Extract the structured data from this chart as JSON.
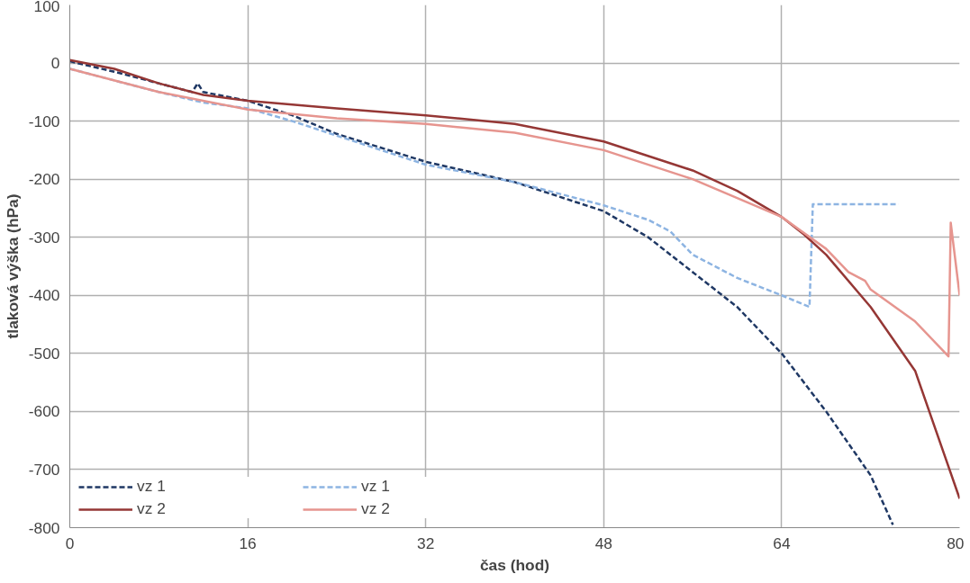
{
  "chart_data": {
    "type": "line",
    "xlabel": "čas (hod)",
    "ylabel": "tlaková výška (hPa)",
    "xlim": [
      0,
      80
    ],
    "xticks": [
      0,
      16,
      32,
      48,
      64,
      80
    ],
    "ylim": [
      -800,
      100
    ],
    "yticks": [
      100,
      0,
      -100,
      -200,
      -300,
      -400,
      -500,
      -600,
      -700,
      -800
    ],
    "grid": true,
    "legend": "bottom left",
    "series": [
      {
        "name": "vz 1",
        "color": "#1f3864",
        "line_style": "dashed",
        "x": [
          0,
          4,
          8,
          10,
          11,
          11.5,
          12,
          16,
          20,
          24,
          32,
          40,
          48,
          52,
          56,
          60,
          64,
          68,
          72,
          74
        ],
        "values": [
          3,
          -15,
          -35,
          -45,
          -50,
          -35,
          -50,
          -65,
          -90,
          -122,
          -170,
          -205,
          -255,
          -300,
          -360,
          -420,
          -500,
          -600,
          -710,
          -795
        ]
      },
      {
        "name": "vz 1",
        "color": "#8db4e2",
        "line_style": "dashed",
        "x": [
          0,
          8,
          12,
          16,
          20,
          24,
          32,
          40,
          48,
          52,
          54,
          56,
          60,
          64,
          66.5,
          66.8,
          74.5
        ],
        "values": [
          -10,
          -50,
          -68,
          -78,
          -100,
          -125,
          -175,
          -205,
          -245,
          -270,
          -290,
          -330,
          -370,
          -400,
          -420,
          -243,
          -243
        ]
      },
      {
        "name": "vz 2",
        "color": "#953735",
        "line_style": "solid",
        "x": [
          0,
          4,
          8,
          12,
          16,
          24,
          32,
          40,
          48,
          56,
          60,
          64,
          66,
          68,
          72,
          76,
          80
        ],
        "values": [
          5,
          -10,
          -35,
          -55,
          -65,
          -78,
          -90,
          -105,
          -135,
          -185,
          -220,
          -265,
          -295,
          -330,
          -420,
          -530,
          -750
        ]
      },
      {
        "name": "vz 2",
        "color": "#e6958f",
        "line_style": "solid",
        "x": [
          0,
          8,
          16,
          24,
          32,
          40,
          48,
          56,
          64,
          68,
          70,
          71.5,
          72,
          76,
          79,
          79.2,
          80
        ],
        "values": [
          -10,
          -50,
          -80,
          -95,
          -105,
          -120,
          -150,
          -200,
          -265,
          -320,
          -360,
          -375,
          -390,
          -445,
          -505,
          -275,
          -400
        ]
      }
    ]
  }
}
